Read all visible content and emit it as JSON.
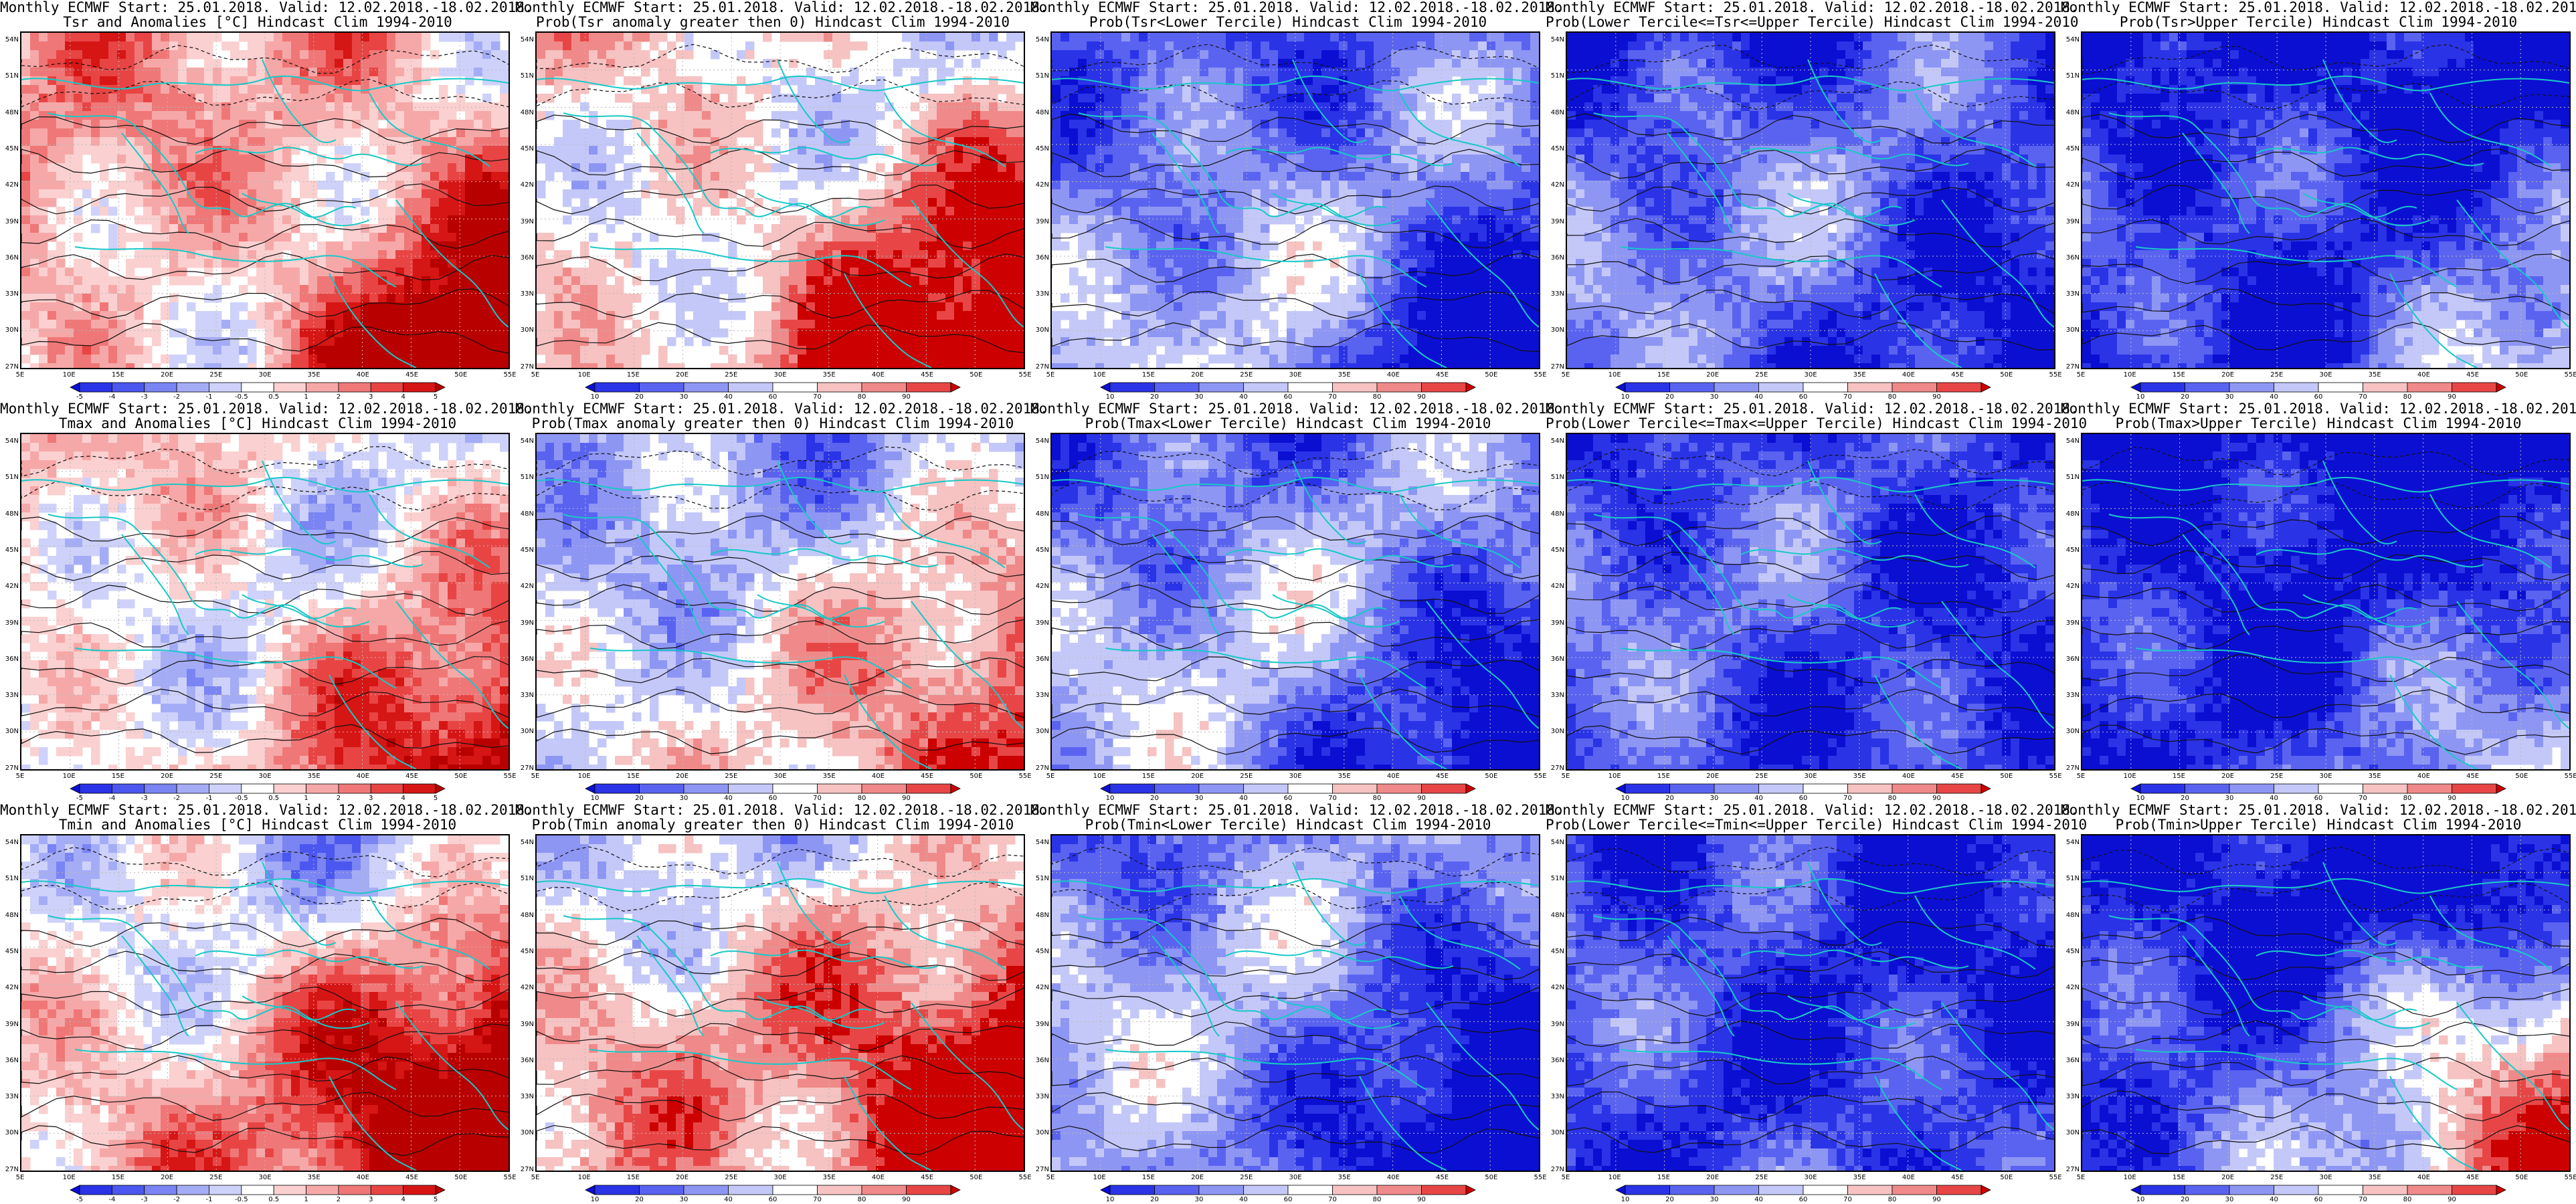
{
  "title_line1": "Monthly ECMWF Start: 25.01.2018. Valid: 12.02.2018.-18.02.2018.",
  "lat_labels": [
    "54N",
    "51N",
    "48N",
    "45N",
    "42N",
    "39N",
    "36N",
    "33N",
    "30N",
    "27N"
  ],
  "lon_labels": [
    "5E",
    "10E",
    "15E",
    "20E",
    "25E",
    "30E",
    "35E",
    "40E",
    "45E",
    "50E",
    "55E"
  ],
  "anomaly_scale": {
    "labels": [
      "-5",
      "-4",
      "-3",
      "-2",
      "-1",
      "-0.5",
      "0.5",
      "1",
      "2",
      "3",
      "4",
      "5"
    ],
    "colors": [
      "#0b0fd2",
      "#2a33e6",
      "#4b57ee",
      "#7a84f2",
      "#a5acf6",
      "#ced2fa",
      "#ffffff",
      "#fbd0d0",
      "#f6a8a8",
      "#f07777",
      "#e84444",
      "#d61515",
      "#b80000"
    ]
  },
  "prob_scale": {
    "labels": [
      "10",
      "20",
      "30",
      "40",
      "60",
      "70",
      "80",
      "90"
    ],
    "colors": [
      "#0b0fd2",
      "#2a33e6",
      "#5a63f0",
      "#8e96f4",
      "#c4c8f8",
      "#ffffff",
      "#f6c2c2",
      "#f08a8a",
      "#e84646",
      "#cc0000"
    ]
  },
  "panels": [
    {
      "title2": "Tsr and Anomalies [°C] Hindcast Clim 1994-2010",
      "scale": "anomaly",
      "bias": 0.25,
      "warmSE": 0.9,
      "blueNE": 0.0
    },
    {
      "title2": "Prob(Tsr anomaly greater then 0) Hindcast Clim 1994-2010",
      "scale": "prob",
      "bias": 0.15,
      "warmSE": 0.9,
      "blueNE": 0.1
    },
    {
      "title2": "Prob(Tsr<Lower Tercile) Hindcast Clim 1994-2010",
      "scale": "prob",
      "bias": -0.35,
      "warmSE": -0.8,
      "blueNE": 0.3
    },
    {
      "title2": "Prob(Lower Tercile<=Tsr<=Upper Tercile) Hindcast Clim 1994-2010",
      "scale": "prob",
      "bias": -0.55,
      "warmSE": -0.3,
      "blueNE": 0.4
    },
    {
      "title2": "Prob(Tsr>Upper Tercile) Hindcast Clim 1994-2010",
      "scale": "prob",
      "bias": -0.75,
      "warmSE": 0.5,
      "blueNE": 0.6
    },
    {
      "title2": "Tmax and Anomalies [°C] Hindcast Clim 1994-2010",
      "scale": "anomaly",
      "bias": 0.1,
      "warmSE": 0.6,
      "blueNE": 0.0
    },
    {
      "title2": "Prob(Tmax anomaly greater then 0) Hindcast Clim 1994-2010",
      "scale": "prob",
      "bias": -0.1,
      "warmSE": 0.7,
      "blueNE": 0.2
    },
    {
      "title2": "Prob(Tmax<Lower Tercile) Hindcast Clim 1994-2010",
      "scale": "prob",
      "bias": -0.35,
      "warmSE": -0.7,
      "blueNE": 0.3
    },
    {
      "title2": "Prob(Lower Tercile<=Tmax<=Upper Tercile) Hindcast Clim 1994-2010",
      "scale": "prob",
      "bias": -0.6,
      "warmSE": -0.2,
      "blueNE": 0.4
    },
    {
      "title2": "Prob(Tmax>Upper Tercile) Hindcast Clim 1994-2010",
      "scale": "prob",
      "bias": -0.75,
      "warmSE": 0.3,
      "blueNE": 0.6
    },
    {
      "title2": "Tmin and Anomalies [°C] Hindcast Clim 1994-2010",
      "scale": "anomaly",
      "bias": 0.25,
      "warmSE": 1.0,
      "blueNE": 0.5
    },
    {
      "title2": "Prob(Tmin anomaly greater then 0) Hindcast Clim 1994-2010",
      "scale": "prob",
      "bias": 0.2,
      "warmSE": 1.0,
      "blueNE": 0.4
    },
    {
      "title2": "Prob(Tmin<Lower Tercile) Hindcast Clim 1994-2010",
      "scale": "prob",
      "bias": -0.35,
      "warmSE": -1.0,
      "blueNE": 0.3
    },
    {
      "title2": "Prob(Lower Tercile<=Tmin<=Upper Tercile) Hindcast Clim 1994-2010",
      "scale": "prob",
      "bias": -0.65,
      "warmSE": -0.2,
      "blueNE": 0.4
    },
    {
      "title2": "Prob(Tmin>Upper Tercile) Hindcast Clim 1994-2010",
      "scale": "prob",
      "bias": -0.6,
      "warmSE": 1.0,
      "blueNE": 0.7
    }
  ]
}
